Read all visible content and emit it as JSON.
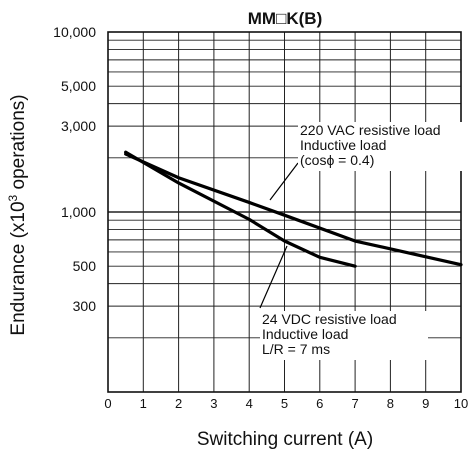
{
  "chart_data": {
    "type": "line",
    "title": "MM□K(B)",
    "xlabel": "Switching current (A)",
    "ylabel_base": "Endurance (x10",
    "ylabel_sup": "3",
    "ylabel_tail": " operations)",
    "xlim": [
      0,
      10
    ],
    "ylim": [
      100,
      10000
    ],
    "yscale": "log",
    "grid": true,
    "xticks": [
      "0",
      "1",
      "2",
      "3",
      "4",
      "5",
      "6",
      "7",
      "8",
      "9",
      "10"
    ],
    "yticks": [
      {
        "value": 10000,
        "label": "10,000"
      },
      {
        "value": 5000,
        "label": "5,000"
      },
      {
        "value": 3000,
        "label": "3,000"
      },
      {
        "value": 1000,
        "label": "1,000"
      },
      {
        "value": 500,
        "label": "500"
      },
      {
        "value": 300,
        "label": "300"
      }
    ],
    "series": [
      {
        "x": [
          0.5,
          2,
          4,
          5,
          7,
          10
        ],
        "y": [
          2100,
          1550,
          1130,
          960,
          690,
          510
        ]
      },
      {
        "x": [
          0.5,
          2,
          4,
          5,
          6,
          7
        ],
        "y": [
          2150,
          1450,
          910,
          690,
          560,
          500
        ]
      }
    ],
    "annotations": [
      {
        "lines": [
          "220 VAC resistive load",
          "Inductive load",
          "(cosϕ = 0.4)"
        ]
      },
      {
        "lines": [
          "24 VDC resistive load",
          "Inductive load",
          "L/R = 7 ms"
        ]
      }
    ]
  }
}
